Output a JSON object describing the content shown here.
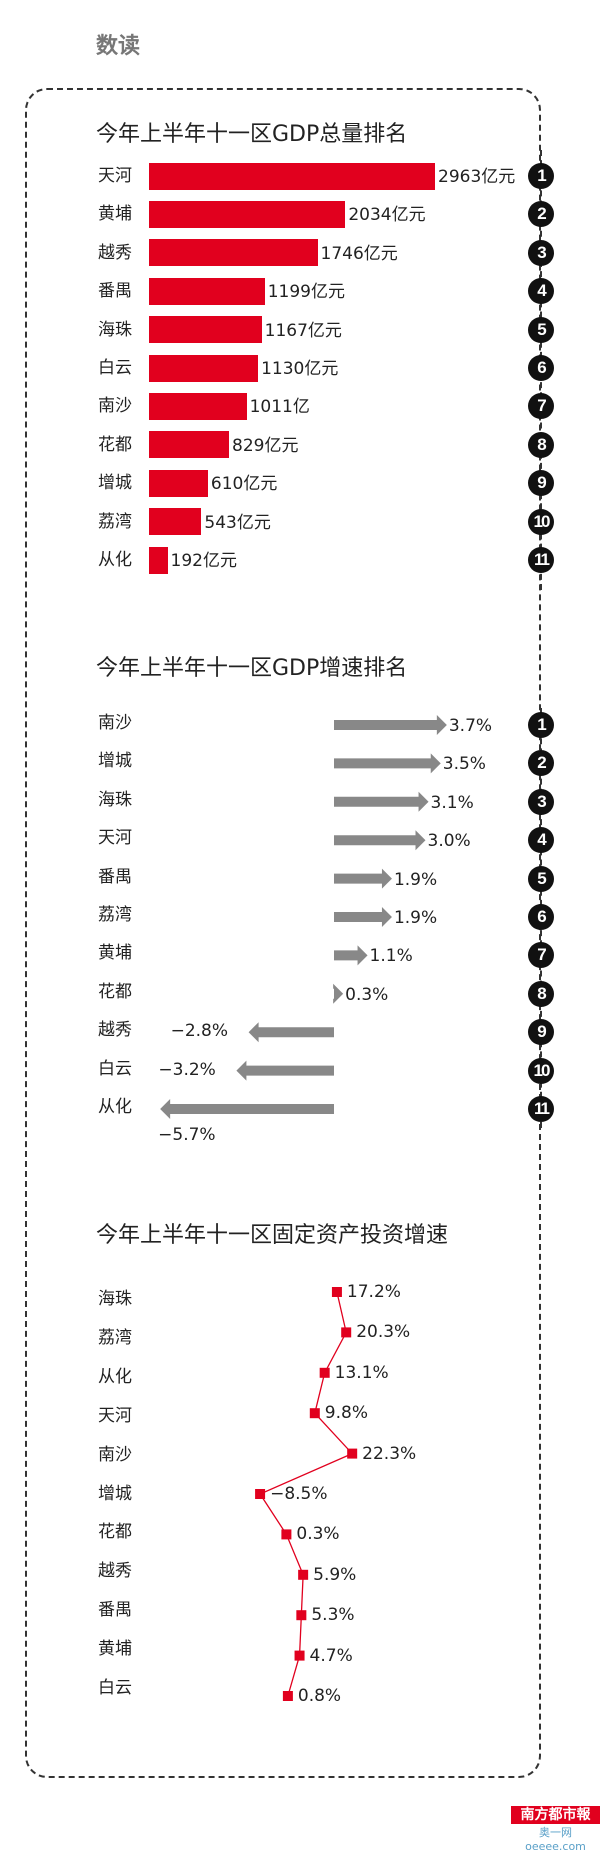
{
  "header": {
    "title": "数读"
  },
  "colors": {
    "bar": "#e1001e",
    "arrow": "#888888",
    "line": "#e1001e"
  },
  "chart_data": [
    {
      "type": "bar",
      "title": "今年上半年十一区GDP总量排名",
      "categories": [
        "天河",
        "黄埔",
        "越秀",
        "番禺",
        "海珠",
        "白云",
        "南沙",
        "花都",
        "增城",
        "荔湾",
        "从化"
      ],
      "values": [
        2963,
        2034,
        1746,
        1199,
        1167,
        1130,
        1011,
        829,
        610,
        543,
        192
      ],
      "value_labels": [
        "2963亿元",
        "2034亿元",
        "1746亿元",
        "1199亿元",
        "1167亿元",
        "1130亿元",
        "1011亿",
        "829亿元",
        "610亿元",
        "543亿元",
        "192亿元"
      ],
      "ranks": [
        "1",
        "2",
        "3",
        "4",
        "5",
        "6",
        "7",
        "8",
        "9",
        "10",
        "11"
      ],
      "unit": "亿元"
    },
    {
      "type": "bar",
      "title": "今年上半年十一区GDP增速排名",
      "categories": [
        "南沙",
        "增城",
        "海珠",
        "天河",
        "番禺",
        "荔湾",
        "黄埔",
        "花都",
        "越秀",
        "白云",
        "从化"
      ],
      "values": [
        3.7,
        3.5,
        3.1,
        3.0,
        1.9,
        1.9,
        1.1,
        0.3,
        -2.8,
        -3.2,
        -5.7
      ],
      "value_labels": [
        "3.7%",
        "3.5%",
        "3.1%",
        "3.0%",
        "1.9%",
        "1.9%",
        "1.1%",
        "0.3%",
        "−2.8%",
        "−3.2%",
        "−5.7%"
      ],
      "ranks": [
        "1",
        "2",
        "3",
        "4",
        "5",
        "6",
        "7",
        "8",
        "9",
        "10",
        "11"
      ],
      "unit": "%"
    },
    {
      "type": "line",
      "title": "今年上半年十一区固定资产投资增速",
      "categories": [
        "海珠",
        "荔湾",
        "从化",
        "天河",
        "南沙",
        "增城",
        "花都",
        "越秀",
        "番禺",
        "黄埔",
        "白云"
      ],
      "values": [
        17.2,
        20.3,
        13.1,
        9.8,
        22.3,
        -8.5,
        0.3,
        5.9,
        5.3,
        4.7,
        0.8
      ],
      "value_labels": [
        "17.2%",
        "20.3%",
        "13.1%",
        "9.8%",
        "22.3%",
        "−8.5%",
        "0.3%",
        "5.9%",
        "5.3%",
        "4.7%",
        "0.8%"
      ],
      "unit": "%"
    }
  ],
  "logo": {
    "name": "南方都市報",
    "sub": "奥一网oeeee.com"
  }
}
